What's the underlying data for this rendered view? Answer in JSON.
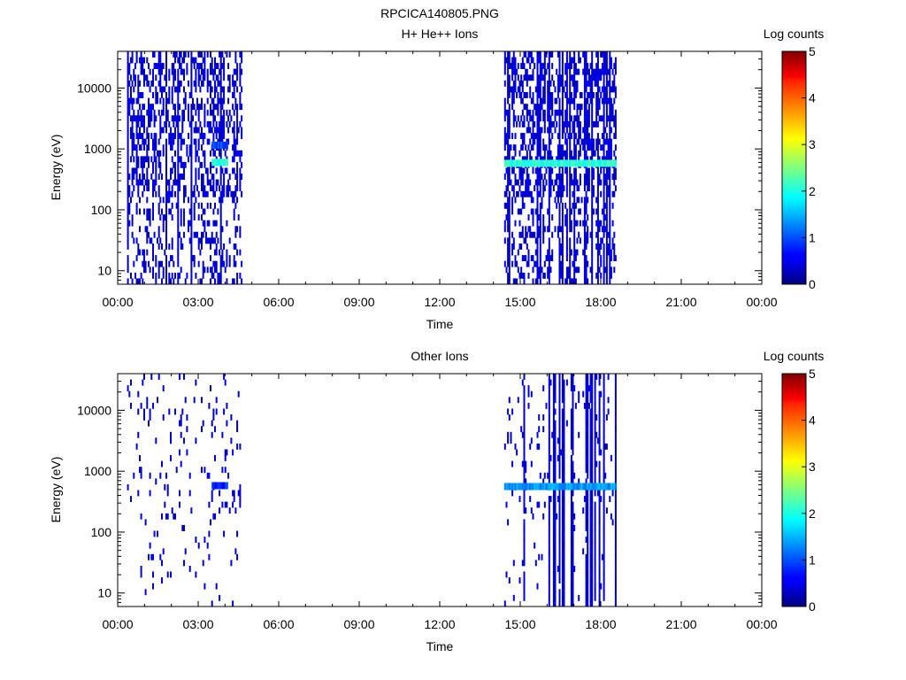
{
  "figure_title": "RPCICA140805.PNG",
  "chart_data": [
    {
      "type": "heatmap",
      "title": "H+ He++ Ions",
      "xlabel": "Time",
      "ylabel": "Energy (eV)",
      "x_ticks": [
        "00:00",
        "03:00",
        "06:00",
        "09:00",
        "12:00",
        "15:00",
        "18:00",
        "21:00",
        "00:00"
      ],
      "xlim_hours": [
        0,
        24
      ],
      "y_scale": "log",
      "y_ticks": [
        "10",
        "100",
        "1000",
        "10000"
      ],
      "ylim": [
        6,
        40000
      ],
      "colorbar": {
        "label": "Log counts",
        "ticks": [
          "0",
          "1",
          "2",
          "3",
          "4",
          "5"
        ],
        "range": [
          0,
          5
        ]
      },
      "data_intervals_hours": [
        [
          0.35,
          4.6
        ],
        [
          14.4,
          18.55
        ]
      ],
      "peak_bands": [
        {
          "from_h": 3.5,
          "to_h": 4.1,
          "energy_eV": 600,
          "level": 2.1
        },
        {
          "from_h": 3.5,
          "to_h": 4.1,
          "energy_eV": 1150,
          "level": 1.0
        },
        {
          "from_h": 14.4,
          "to_h": 18.55,
          "energy_eV": 580,
          "level": 2.1
        }
      ]
    },
    {
      "type": "heatmap",
      "title": "Other Ions",
      "xlabel": "Time",
      "ylabel": "Energy (eV)",
      "x_ticks": [
        "00:00",
        "03:00",
        "06:00",
        "09:00",
        "12:00",
        "15:00",
        "18:00",
        "21:00",
        "00:00"
      ],
      "xlim_hours": [
        0,
        24
      ],
      "y_scale": "log",
      "y_ticks": [
        "10",
        "100",
        "1000",
        "10000"
      ],
      "ylim": [
        6,
        40000
      ],
      "colorbar": {
        "label": "Log counts",
        "ticks": [
          "0",
          "1",
          "2",
          "3",
          "4",
          "5"
        ],
        "range": [
          0,
          5
        ]
      },
      "data_intervals_hours": [
        [
          0.35,
          4.6
        ],
        [
          14.4,
          18.55
        ]
      ],
      "peak_bands": [
        {
          "from_h": 14.4,
          "to_h": 18.55,
          "energy_eV": 560,
          "level": 1.4
        },
        {
          "from_h": 3.5,
          "to_h": 4.1,
          "energy_eV": 580,
          "level": 0.8
        }
      ]
    }
  ]
}
